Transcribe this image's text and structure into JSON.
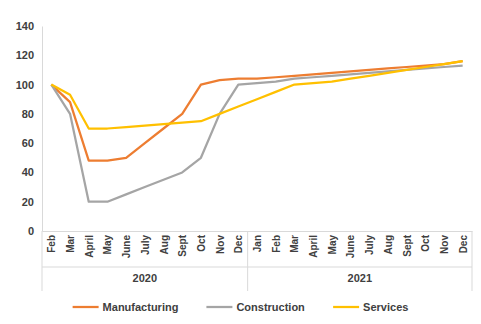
{
  "chart_data": {
    "type": "line",
    "x_groups": [
      {
        "label": "2020",
        "categories": [
          "Feb",
          "Mar",
          "April",
          "May",
          "June",
          "July",
          "Aug",
          "Sept",
          "Oct",
          "Nov",
          "Dec"
        ]
      },
      {
        "label": "2021",
        "categories": [
          "Jan",
          "Feb",
          "Mar",
          "April",
          "May",
          "June",
          "July",
          "Aug",
          "Sept",
          "Oct",
          "Nov",
          "Dec"
        ]
      }
    ],
    "series": [
      {
        "name": "Manufacturing",
        "color": "#ed7d31",
        "values": [
          100,
          88,
          48,
          48,
          50,
          60,
          70,
          80,
          100,
          103,
          104,
          104,
          105,
          106,
          107,
          108,
          109,
          110,
          111,
          112,
          113,
          114,
          116
        ]
      },
      {
        "name": "Construction",
        "color": "#a5a5a5",
        "values": [
          100,
          80,
          20,
          20,
          25,
          30,
          35,
          40,
          50,
          80,
          100,
          101,
          102,
          104,
          105,
          106,
          107,
          108,
          109,
          110,
          111,
          112,
          113
        ]
      },
      {
        "name": "Services",
        "color": "#ffc000",
        "values": [
          100,
          93,
          70,
          70,
          71,
          72,
          73,
          74,
          75,
          80,
          85,
          90,
          95,
          100,
          101,
          102,
          104,
          106,
          108,
          110,
          112,
          114,
          116
        ]
      }
    ],
    "ylim": [
      0,
      140
    ],
    "yticks": [
      0,
      20,
      40,
      60,
      80,
      100,
      120,
      140
    ],
    "grid": false,
    "legend": "bottom"
  }
}
